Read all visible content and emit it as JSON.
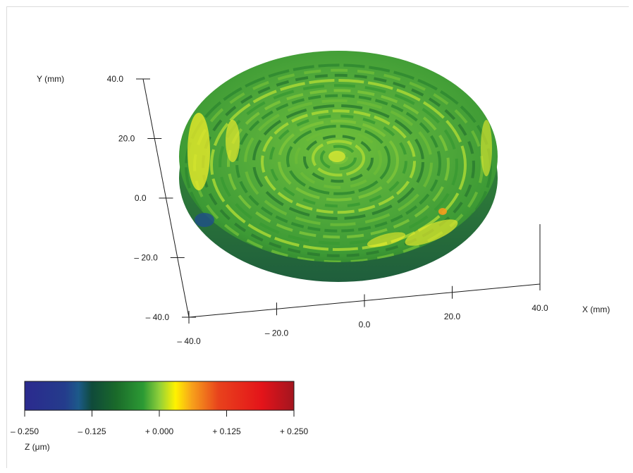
{
  "chart_data": {
    "type": "surface3d",
    "title": "",
    "x_axis": {
      "label": "X (mm)",
      "ticks": [
        "– 40.0",
        "– 20.0",
        "0.0",
        "20.0",
        "40.0"
      ],
      "range": [
        -40,
        40
      ]
    },
    "y_axis": {
      "label": "Y (mm)",
      "ticks": [
        "– 40.0",
        "– 20.0",
        "0.0",
        "20.0",
        "40.0"
      ],
      "range": [
        -40,
        40
      ]
    },
    "z_axis": {
      "label": "Z (μm)",
      "range": [
        -0.25,
        0.25
      ]
    },
    "colorbar": {
      "ticks": [
        "– 0.250",
        "– 0.125",
        "+ 0.000",
        "+ 0.125",
        "+ 0.250"
      ],
      "stops": [
        {
          "value": -0.25,
          "color": "#2b2a8e"
        },
        {
          "value": -0.175,
          "color": "#243c8c"
        },
        {
          "value": -0.15,
          "color": "#1c5a8a"
        },
        {
          "value": -0.125,
          "color": "#0f4a3a"
        },
        {
          "value": -0.08,
          "color": "#1a6a2a"
        },
        {
          "value": -0.03,
          "color": "#2c9a34"
        },
        {
          "value": 0.0,
          "color": "#8fcf3a"
        },
        {
          "value": 0.03,
          "color": "#fff200"
        },
        {
          "value": 0.06,
          "color": "#f7a21b"
        },
        {
          "value": 0.11,
          "color": "#e8421c"
        },
        {
          "value": 0.19,
          "color": "#e4141a"
        },
        {
          "value": 0.25,
          "color": "#a3151f"
        }
      ]
    },
    "surface": {
      "shape": "circular disk, diameter about 80 mm",
      "pattern": "concentric ripples",
      "dominant_color": "green"
    }
  }
}
